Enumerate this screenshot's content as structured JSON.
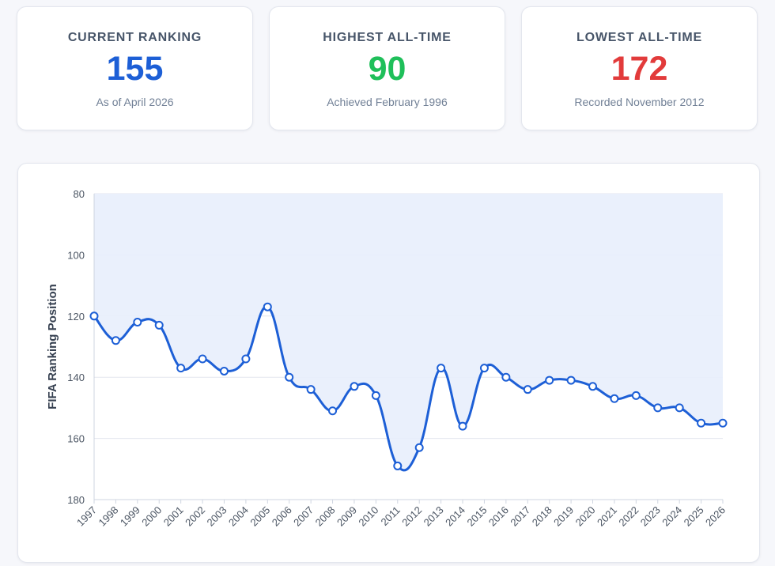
{
  "stats": {
    "current": {
      "label": "CURRENT RANKING",
      "value": "155",
      "sub": "As of April 2026",
      "color": "#1d5fd6"
    },
    "highest": {
      "label": "HIGHEST ALL-TIME",
      "value": "90",
      "sub": "Achieved February 1996",
      "color": "#1fbf5a"
    },
    "lowest": {
      "label": "LOWEST ALL-TIME",
      "value": "172",
      "sub": "Recorded November 2012",
      "color": "#e23b3b"
    }
  },
  "chart_data": {
    "type": "line",
    "ylabel": "FIFA Ranking Position",
    "y_inverted": true,
    "ylim": [
      80,
      180
    ],
    "yticks": [
      80,
      100,
      120,
      140,
      160,
      180
    ],
    "grid": true,
    "line_color": "#1d5fd6",
    "fill_color": "#e8eefc",
    "categories": [
      "1997",
      "1998",
      "1999",
      "2000",
      "2001",
      "2002",
      "2003",
      "2004",
      "2005",
      "2006",
      "2007",
      "2008",
      "2009",
      "2010",
      "2011",
      "2012",
      "2013",
      "2014",
      "2015",
      "2016",
      "2017",
      "2018",
      "2019",
      "2020",
      "2021",
      "2022",
      "2023",
      "2024",
      "2025",
      "2026"
    ],
    "values": [
      120,
      128,
      122,
      123,
      137,
      134,
      138,
      134,
      117,
      140,
      144,
      151,
      143,
      146,
      169,
      163,
      137,
      156,
      137,
      140,
      144,
      141,
      141,
      143,
      147,
      146,
      150,
      150,
      155,
      155
    ]
  }
}
